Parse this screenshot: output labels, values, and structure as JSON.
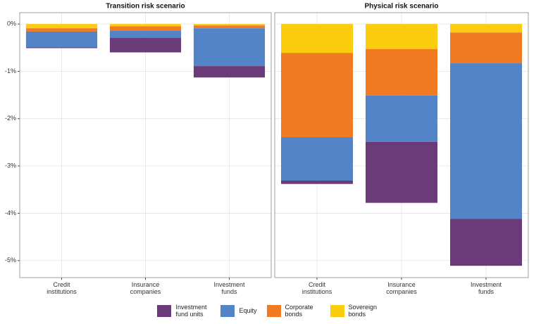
{
  "chart_data": {
    "type": "bar",
    "panel_titles": [
      "Transition risk scenario",
      "Physical risk scenario"
    ],
    "categories": [
      "Credit institutions",
      "Insurance companies",
      "Investment funds"
    ],
    "series": [
      {
        "name": "Investment fund units",
        "color": "#6b3a78",
        "values": [
          [
            -0.02,
            -0.31,
            -0.24
          ],
          [
            -0.07,
            -1.29,
            -0.99
          ]
        ]
      },
      {
        "name": "Equity",
        "color": "#5384c7",
        "values": [
          [
            -0.33,
            -0.15,
            -0.8
          ],
          [
            -0.92,
            -0.98,
            -3.29
          ]
        ]
      },
      {
        "name": "Corporate bonds",
        "color": "#f07b22",
        "values": [
          [
            -0.07,
            -0.09,
            -0.06
          ],
          [
            -1.78,
            -0.98,
            -0.65
          ]
        ]
      },
      {
        "name": "Sovereign bonds",
        "color": "#fccd0f",
        "values": [
          [
            -0.09,
            -0.05,
            -0.03
          ],
          [
            -0.61,
            -0.53,
            -0.18
          ]
        ]
      }
    ],
    "ylim": [
      -5.36,
      0.24
    ],
    "yticks": [
      {
        "value": 0,
        "label": "0%"
      },
      {
        "value": -1,
        "label": "-1%"
      },
      {
        "value": -2,
        "label": "-2%"
      },
      {
        "value": -3,
        "label": "-3%"
      },
      {
        "value": -4,
        "label": "-4%"
      },
      {
        "value": -5,
        "label": "-5%"
      }
    ],
    "grid": true
  }
}
